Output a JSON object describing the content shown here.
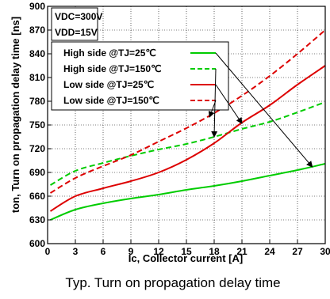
{
  "chart_data": {
    "type": "line",
    "xlabel": "Ic, Collector current [A]",
    "ylabel": "ton, Turn on propagation delay time [ns]",
    "caption": "Typ. Turn on propagation delay time",
    "xlim": [
      0,
      30
    ],
    "ylim": [
      600,
      900
    ],
    "xticks": [
      0,
      3,
      6,
      9,
      12,
      15,
      18,
      21,
      24,
      27,
      30
    ],
    "yticks": [
      600,
      630,
      660,
      690,
      720,
      750,
      780,
      810,
      840,
      870,
      900
    ],
    "grid": true,
    "conditions": [
      "VDC=300V",
      "VDD=15V"
    ],
    "legend_position": "top-left",
    "series": [
      {
        "name": "High side @TJ=25℃",
        "color": "#00cc00",
        "dash": "solid",
        "x": [
          0.3,
          3,
          6,
          9,
          12,
          15,
          18,
          21,
          24,
          27,
          30
        ],
        "values": [
          630,
          643,
          651,
          657,
          662,
          668,
          673,
          679,
          686,
          693,
          701
        ]
      },
      {
        "name": "High side @TJ=150℃",
        "color": "#00cc00",
        "dash": "dashed",
        "x": [
          0.3,
          3,
          6,
          9,
          12,
          15,
          18,
          21,
          24,
          27,
          30
        ],
        "values": [
          674,
          692,
          702,
          711,
          719,
          726,
          735,
          745,
          754,
          766,
          779
        ]
      },
      {
        "name": "Low side @TJ=25℃",
        "color": "#dd0000",
        "dash": "solid",
        "x": [
          0.3,
          3,
          6,
          9,
          12,
          15,
          18,
          21,
          24,
          27,
          30
        ],
        "values": [
          641,
          660,
          670,
          679,
          690,
          706,
          727,
          753,
          775,
          801,
          825
        ]
      },
      {
        "name": "Low side @TJ=150℃",
        "color": "#dd0000",
        "dash": "dashed",
        "x": [
          0.3,
          3,
          6,
          9,
          12,
          15,
          18,
          21,
          24,
          27,
          30
        ],
        "values": [
          664,
          683,
          698,
          712,
          729,
          746,
          765,
          787,
          812,
          840,
          870
        ]
      }
    ]
  }
}
